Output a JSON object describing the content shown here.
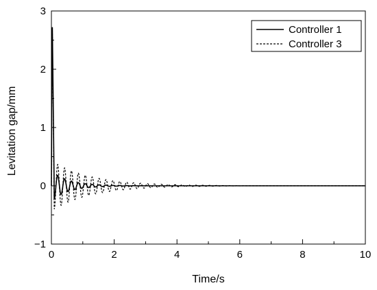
{
  "chart_data": {
    "type": "line",
    "title": "",
    "xlabel": "Time/s",
    "ylabel": "Levitation gap/mm",
    "xlim": [
      0,
      10
    ],
    "ylim": [
      -1,
      3
    ],
    "xticks": [
      "0",
      "2",
      "4",
      "6",
      "8",
      "10"
    ],
    "yticks": [
      "-1",
      "0",
      "1",
      "2",
      "3"
    ],
    "grid": false,
    "legend_position": "top-right",
    "series": [
      {
        "name": "Controller 1",
        "style": "solid",
        "color": "#000000",
        "peak": 2.72,
        "peak_time": 0.03,
        "first_trough": -0.1,
        "oscillation_amplitude": 0.22,
        "oscillation_period": 0.22,
        "decay_time_constant": 0.55,
        "settle_time": 2.5
      },
      {
        "name": "Controller 3",
        "style": "dashed",
        "color": "#000000",
        "peak": 2.72,
        "peak_time": 0.03,
        "first_trough": -0.4,
        "oscillation_amplitude": 0.4,
        "oscillation_period": 0.22,
        "decay_time_constant": 1.25,
        "settle_time": 5.5
      }
    ]
  }
}
